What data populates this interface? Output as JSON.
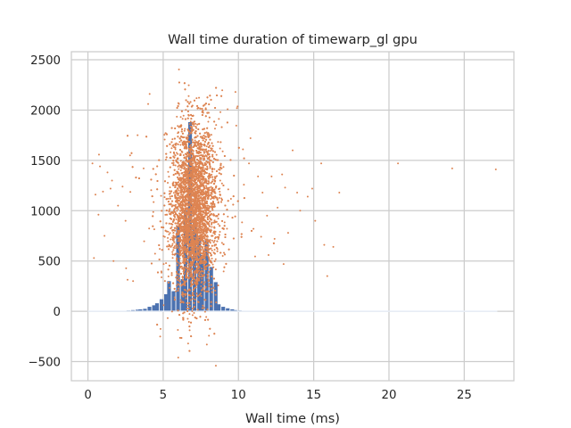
{
  "chart_data": {
    "type": "scatter",
    "title": "Wall time duration of timewarp_gl gpu",
    "xlabel": "Wall time (ms)",
    "ylabel": "",
    "xlim": [
      -1.1,
      28.3
    ],
    "ylim": [
      -690,
      2580
    ],
    "x_ticks": [
      0,
      5,
      10,
      15,
      20,
      25
    ],
    "y_ticks": [
      -500,
      0,
      500,
      1000,
      1500,
      2000,
      2500
    ],
    "grid": true,
    "colors": {
      "histogram": "#4c72b0",
      "scatter": "#dd8452",
      "grid": "#cccccc",
      "spine": "#cccccc",
      "text": "#262626"
    },
    "histogram": {
      "name": "",
      "bin_width": 0.27,
      "bins": [
        {
          "x": 2.7,
          "count": 8
        },
        {
          "x": 3.0,
          "count": 12
        },
        {
          "x": 3.3,
          "count": 16
        },
        {
          "x": 3.5,
          "count": 20
        },
        {
          "x": 3.8,
          "count": 25
        },
        {
          "x": 4.1,
          "count": 45
        },
        {
          "x": 4.4,
          "count": 60
        },
        {
          "x": 4.6,
          "count": 80
        },
        {
          "x": 4.9,
          "count": 120
        },
        {
          "x": 5.2,
          "count": 170
        },
        {
          "x": 5.4,
          "count": 300
        },
        {
          "x": 5.7,
          "count": 200
        },
        {
          "x": 6.0,
          "count": 850
        },
        {
          "x": 6.3,
          "count": 320
        },
        {
          "x": 6.5,
          "count": 1000
        },
        {
          "x": 6.8,
          "count": 1880
        },
        {
          "x": 7.1,
          "count": 920
        },
        {
          "x": 7.4,
          "count": 730
        },
        {
          "x": 7.6,
          "count": 560
        },
        {
          "x": 7.9,
          "count": 720
        },
        {
          "x": 8.2,
          "count": 440
        },
        {
          "x": 8.5,
          "count": 290
        },
        {
          "x": 8.7,
          "count": 70
        },
        {
          "x": 9.0,
          "count": 45
        },
        {
          "x": 9.3,
          "count": 30
        },
        {
          "x": 9.6,
          "count": 20
        },
        {
          "x": 9.8,
          "count": 12
        },
        {
          "x": 10.1,
          "count": 8
        },
        {
          "x": 10.4,
          "count": 5
        },
        {
          "x": 10.7,
          "count": 3
        }
      ]
    },
    "scatter": {
      "name": "",
      "marker_size": 1.0,
      "center_x": 7.0,
      "spread_x": 0.75,
      "center_y": 1000,
      "spread_y": 420,
      "n_core": 7000,
      "outliers": [
        {
          "x": 0.3,
          "y": 1470
        },
        {
          "x": 0.5,
          "y": 1160
        },
        {
          "x": 0.7,
          "y": 960
        },
        {
          "x": 0.8,
          "y": 1440
        },
        {
          "x": 1.1,
          "y": 750
        },
        {
          "x": 1.3,
          "y": 1380
        },
        {
          "x": 1.5,
          "y": 1220
        },
        {
          "x": 1.6,
          "y": 1300
        },
        {
          "x": 1.7,
          "y": 500
        },
        {
          "x": 2.0,
          "y": 1050
        },
        {
          "x": 2.3,
          "y": 1240
        },
        {
          "x": 2.5,
          "y": 900
        },
        {
          "x": 0.4,
          "y": 530
        },
        {
          "x": 1.0,
          "y": 1190
        },
        {
          "x": 2.8,
          "y": 1550
        },
        {
          "x": 3.3,
          "y": 1750
        },
        {
          "x": 3.7,
          "y": 1420
        },
        {
          "x": 4.0,
          "y": 2060
        },
        {
          "x": 4.1,
          "y": 2160
        },
        {
          "x": 3.0,
          "y": 300
        },
        {
          "x": 4.8,
          "y": -250
        },
        {
          "x": 6.0,
          "y": -460
        },
        {
          "x": 8.5,
          "y": -540
        },
        {
          "x": 7.9,
          "y": -330
        },
        {
          "x": 9.8,
          "y": 2180
        },
        {
          "x": 9.9,
          "y": 2020
        },
        {
          "x": 8.8,
          "y": 1980
        },
        {
          "x": 10.3,
          "y": 1610
        },
        {
          "x": 10.8,
          "y": 1720
        },
        {
          "x": 11.3,
          "y": 1340
        },
        {
          "x": 11.6,
          "y": 1180
        },
        {
          "x": 11.9,
          "y": 950
        },
        {
          "x": 12.2,
          "y": 1340
        },
        {
          "x": 12.4,
          "y": 720
        },
        {
          "x": 12.6,
          "y": 1030
        },
        {
          "x": 12.9,
          "y": 1360
        },
        {
          "x": 13.1,
          "y": 1230
        },
        {
          "x": 13.3,
          "y": 780
        },
        {
          "x": 13.6,
          "y": 1600
        },
        {
          "x": 13.9,
          "y": 1180
        },
        {
          "x": 14.1,
          "y": 1000
        },
        {
          "x": 14.6,
          "y": 1140
        },
        {
          "x": 14.9,
          "y": 1220
        },
        {
          "x": 15.1,
          "y": 900
        },
        {
          "x": 15.5,
          "y": 1470
        },
        {
          "x": 15.7,
          "y": 660
        },
        {
          "x": 15.9,
          "y": 350
        },
        {
          "x": 16.3,
          "y": 640
        },
        {
          "x": 16.7,
          "y": 1180
        },
        {
          "x": 20.6,
          "y": 1470
        },
        {
          "x": 24.2,
          "y": 1420
        },
        {
          "x": 27.1,
          "y": 1410
        },
        {
          "x": 11.0,
          "y": 820
        },
        {
          "x": 12.0,
          "y": 560
        },
        {
          "x": 13.0,
          "y": 470
        },
        {
          "x": 10.7,
          "y": 1470
        }
      ]
    }
  }
}
